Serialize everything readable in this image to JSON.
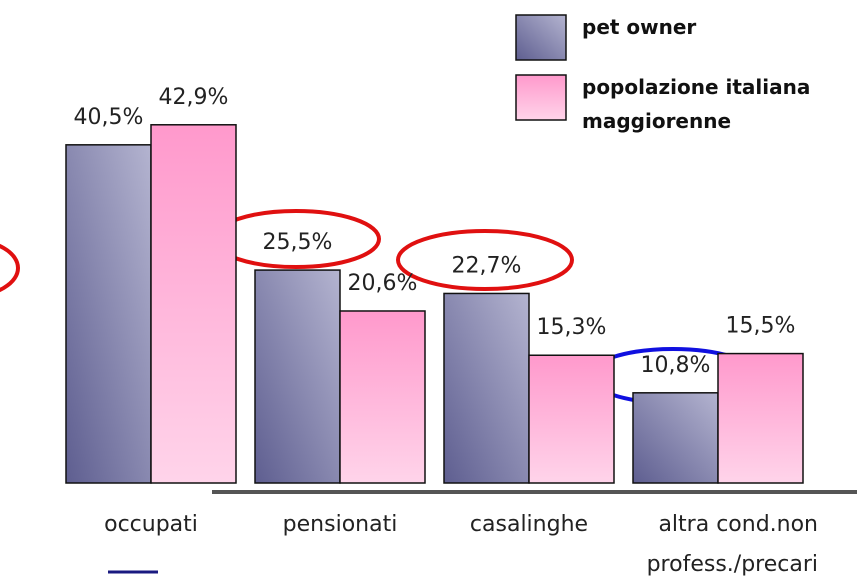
{
  "chart_data": {
    "type": "bar",
    "categories": [
      "occupati",
      "pensionati",
      "casalinghe",
      "altra cond.non profess./precari"
    ],
    "series": [
      {
        "name": "pet owner",
        "color": "#6b6b9a",
        "values": [
          40.5,
          25.5,
          22.7,
          10.8
        ],
        "value_labels": [
          "40,5%",
          "25,5%",
          "22,7%",
          "10,8%"
        ]
      },
      {
        "name": "popolazione italiana maggiorenne",
        "color": "#ff99cc",
        "values": [
          42.9,
          20.6,
          15.3,
          15.5
        ],
        "value_labels": [
          "42,9%",
          "20,6%",
          "15,3%",
          "15,5%"
        ]
      }
    ]
  }
}
